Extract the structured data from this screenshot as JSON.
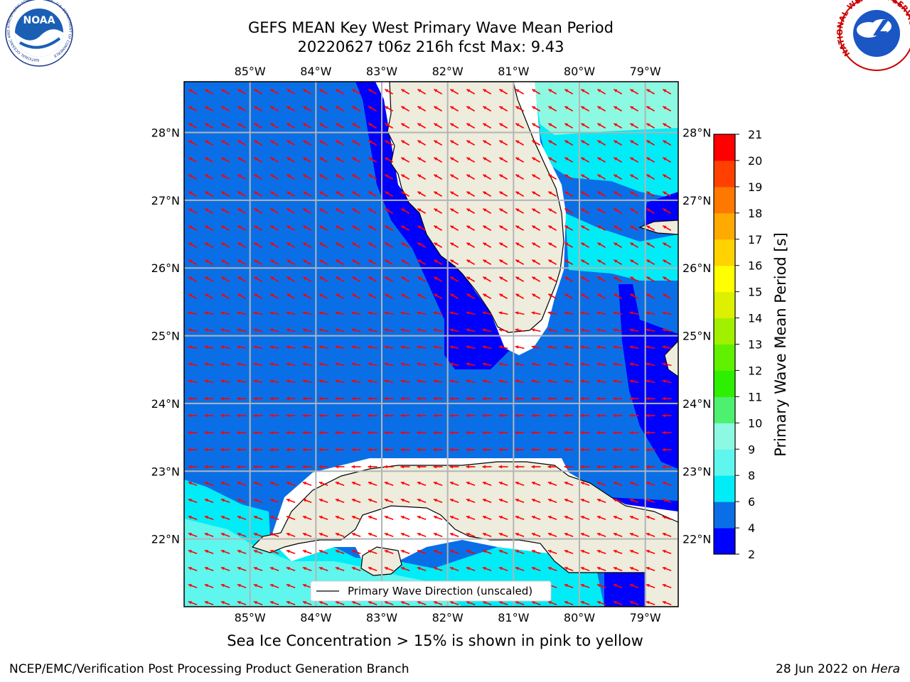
{
  "title": {
    "line1": "GEFS MEAN Key West Primary Wave Mean Period",
    "line2": "20220627 t06z 216h fcst   Max: 9.43"
  },
  "map": {
    "lon_range": [
      -86.0,
      -78.5
    ],
    "lat_range": [
      21.0,
      28.75
    ],
    "lon_ticks": [
      "85°W",
      "84°W",
      "83°W",
      "82°W",
      "81°W",
      "80°W",
      "79°W"
    ],
    "lat_ticks": [
      "28°N",
      "27°N",
      "26°N",
      "25°N",
      "24°N",
      "23°N",
      "22°N"
    ],
    "arrow_color": "#ff0000",
    "land_color": "#eeecdc",
    "grid_color": "#b4b4b4",
    "legend_label": "Primary Wave Direction (unscaled)"
  },
  "colorbar": {
    "label": "Primary Wave Mean Period [s]",
    "tick_labels": [
      "2",
      "4",
      "6",
      "8",
      "9",
      "10",
      "11",
      "12",
      "13",
      "14",
      "15",
      "16",
      "17",
      "18",
      "19",
      "20",
      "21"
    ],
    "colors": [
      "#0000ff",
      "#0a6fe6",
      "#00ecf7",
      "#5ff6ee",
      "#8ef9e2",
      "#4ef070",
      "#2cf000",
      "#60f000",
      "#a0f000",
      "#dcf000",
      "#ffff00",
      "#ffd200",
      "#ffaa00",
      "#ff7800",
      "#ff4000",
      "#ff0000"
    ]
  },
  "subtitle": "Sea Ice Concentration > 15% is shown in pink to yellow",
  "footer": {
    "left": "NCEP/EMC/Verification Post Processing Product Generation Branch",
    "right_date": "28 Jun 2022 on ",
    "right_host": "Hera"
  },
  "logos": {
    "noaa_text": "NOAA",
    "noaa_ring_text": "NATIONAL OCEANIC AND ATMOSPHERIC ADMINISTRATION · U.S. DEPARTMENT OF COMMERCE",
    "nws_ring_text": "NATIONAL WEATHER SERVICE"
  }
}
